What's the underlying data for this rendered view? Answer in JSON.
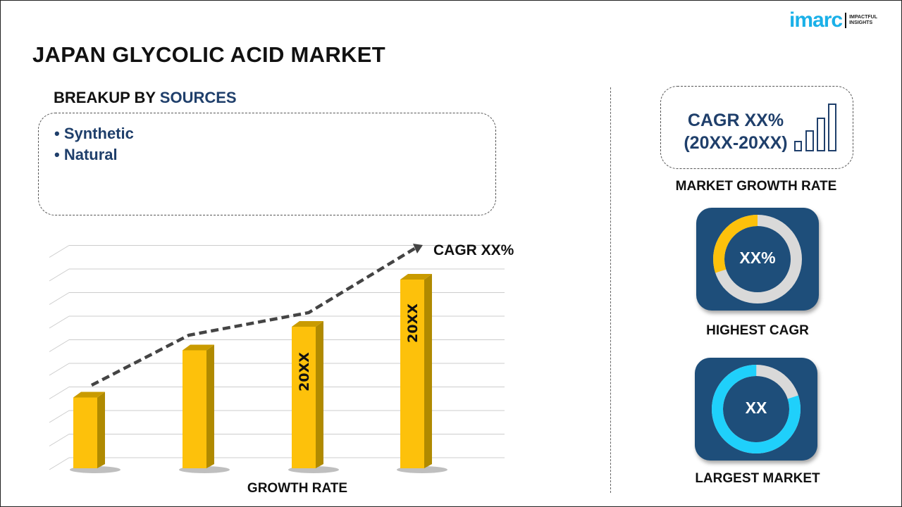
{
  "header": {
    "title": "JAPAN GLYCOLIC ACID MARKET"
  },
  "logo": {
    "word": "imarc",
    "tagline_1": "IMPACTFUL",
    "tagline_2": "INSIGHTS"
  },
  "breakup": {
    "prefix": "BREAKUP BY ",
    "accent": "SOURCES",
    "items": [
      "Synthetic",
      "Natural"
    ]
  },
  "chart_data": {
    "type": "bar",
    "categories": [
      "",
      "",
      "20XX",
      "20XX"
    ],
    "values": [
      3,
      5,
      6,
      8
    ],
    "xlabel": "GROWTH RATE",
    "annotation": "CAGR XX%",
    "grid": true,
    "bar_color": "#fdc10b",
    "trend_line": "dashed"
  },
  "sidebar": {
    "cagr": {
      "line1": "CAGR XX%",
      "line2": "(20XX-20XX)",
      "label": "MARKET GROWTH RATE",
      "icon": "bar-chart-icon"
    },
    "highest": {
      "value": "XX%",
      "label": "HIGHEST CAGR",
      "fraction": 0.3,
      "color": "#fdc10b"
    },
    "largest": {
      "value": "XX",
      "label": "LARGEST MARKET",
      "fraction": 0.8,
      "color": "#1fd0fb"
    }
  },
  "colors": {
    "navy": "#1e4e7a",
    "text_accent": "#1f3f6b",
    "ring_gray": "#d9d9d9"
  }
}
